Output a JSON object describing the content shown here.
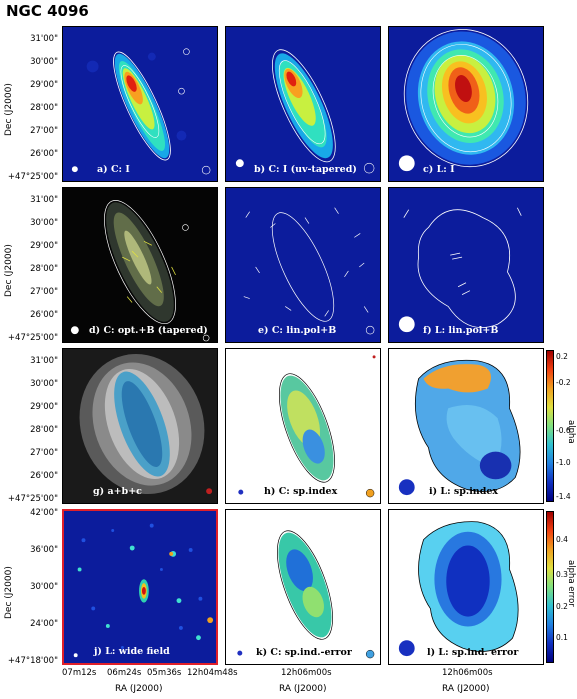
{
  "title": "NGC 4096",
  "panels": {
    "a": "a) C: I",
    "b": "b) C: I (uv-tapered)",
    "c": "c) L: I",
    "d": "d) C: opt.+B (tapered)",
    "e": "e) C: lin.pol+B",
    "f": "f) L: lin.pol+B",
    "g": "g)  a+b+c",
    "h": "h) C: sp.index",
    "i": "i) L: sp.index",
    "j": "j) L: wide field",
    "k": "k) C: sp.ind.-error",
    "l": "l) L: sp.ind. error"
  },
  "axes": {
    "ylabel": "Dec (J2000)",
    "xlabel": "RA (J2000)",
    "dec_ticks_rows123": [
      "31'00\"",
      "30'00\"",
      "29'00\"",
      "28'00\"",
      "27'00\"",
      "26'00\"",
      "+47°25'00\""
    ],
    "dec_ticks_row4": [
      "42'00\"",
      "36'00\"",
      "30'00\"",
      "24'00\"",
      "+47°18'00\""
    ],
    "ra_ticks_left": [
      "07m12s",
      "06m24s",
      "05m36s",
      "12h04m48s"
    ],
    "ra_tick_mid": "12h06m00s",
    "ra_tick_right": "12h06m00s"
  },
  "colorbars": {
    "alpha": {
      "label": "alpha",
      "ticks": [
        "0.2",
        "-0.2",
        "-0.6",
        "-1.0",
        "-1.4"
      ]
    },
    "alpha_error": {
      "label": "alpha error",
      "ticks": [
        "0.4",
        "0.3",
        "0.2",
        "0.1"
      ]
    }
  },
  "colors": {
    "background_map": "#1020a8",
    "frame_highlight": "#e0202a",
    "galaxy_core": "#d01010",
    "contour": "#ffffff"
  }
}
